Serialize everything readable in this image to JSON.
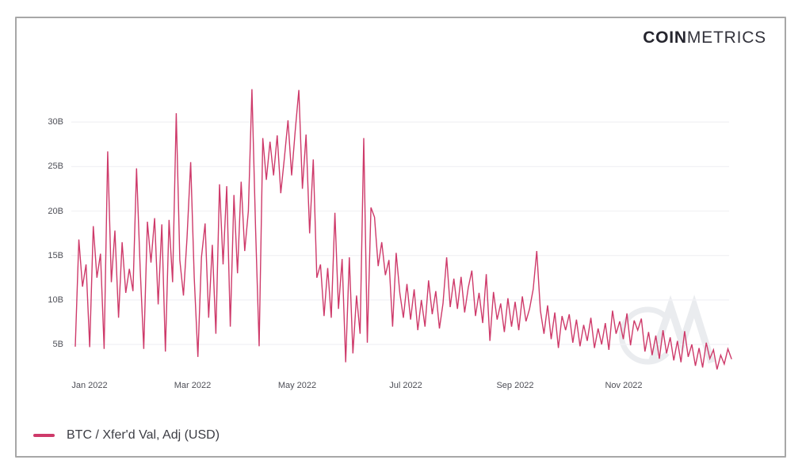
{
  "brand": {
    "logo_bold": "COIN",
    "logo_light": "METRICS"
  },
  "colors": {
    "accent": "#ce3a6a",
    "grid": "#f2f2f5",
    "axis_text": "#4e4f57",
    "frame_border": "#a7a7a7",
    "watermark": "#eaecef"
  },
  "legend": {
    "label": "BTC / Xfer'd Val, Adj (USD)"
  },
  "watermark_icon": "cm-monogram-icon",
  "chart_data": {
    "type": "line",
    "title": "",
    "xlabel": "",
    "ylabel": "",
    "unit": "USD (billions)",
    "legend_position": "bottom-left",
    "grid": "horizontal-only",
    "series_name": "BTC / Xfer'd Val, Adj (USD)",
    "x_tick_labels": [
      "Jan 2022",
      "Mar 2022",
      "May 2022",
      "Jul 2022",
      "Sep 2022",
      "Nov 2022"
    ],
    "y_tick_labels": [
      "30B",
      "25B",
      "20B",
      "15B",
      "10B",
      "5B"
    ],
    "y_tick_values": [
      30,
      25,
      20,
      15,
      10,
      5
    ],
    "ylim": [
      0,
      34
    ],
    "x_range_description": "Daily values, Jan 2022 through Dec 2022",
    "values_unit": "billions USD",
    "values": [
      4.8,
      16.8,
      11.5,
      14.0,
      4.7,
      18.3,
      12.5,
      15.2,
      4.5,
      26.7,
      12.0,
      17.8,
      8.0,
      16.5,
      10.8,
      13.5,
      11.0,
      24.8,
      13.5,
      4.5,
      18.8,
      14.2,
      19.2,
      9.5,
      18.5,
      4.2,
      19.0,
      12.0,
      31.0,
      14.5,
      10.5,
      17.0,
      25.5,
      12.5,
      3.6,
      14.8,
      18.6,
      8.0,
      16.2,
      6.2,
      23.0,
      14.0,
      22.8,
      7.0,
      21.8,
      13.0,
      23.3,
      15.5,
      20.0,
      33.7,
      18.0,
      4.8,
      28.2,
      23.5,
      27.8,
      24.0,
      28.5,
      22.0,
      26.0,
      30.2,
      24.0,
      29.0,
      33.6,
      22.5,
      28.6,
      17.5,
      25.8,
      12.5,
      14.0,
      8.2,
      13.6,
      8.0,
      19.8,
      9.0,
      14.6,
      3.0,
      14.8,
      4.0,
      10.5,
      6.2,
      28.2,
      5.2,
      20.4,
      19.3,
      13.8,
      16.5,
      12.8,
      14.5,
      7.0,
      15.3,
      10.8,
      8.0,
      11.8,
      7.8,
      11.2,
      6.6,
      10.0,
      7.0,
      12.2,
      8.4,
      11.0,
      6.8,
      9.6,
      14.8,
      9.2,
      12.4,
      9.0,
      12.6,
      8.6,
      11.4,
      13.3,
      8.2,
      10.8,
      7.4,
      12.9,
      5.4,
      10.9,
      7.8,
      9.6,
      6.4,
      10.2,
      7.0,
      9.8,
      6.6,
      10.4,
      7.6,
      9.0,
      11.2,
      15.5,
      8.8,
      6.2,
      9.4,
      5.6,
      8.6,
      4.6,
      8.2,
      6.6,
      8.4,
      5.2,
      7.8,
      4.8,
      7.2,
      5.4,
      8.0,
      4.6,
      6.8,
      5.0,
      7.4,
      4.4,
      8.8,
      6.2,
      7.6,
      5.6,
      8.5,
      4.9,
      7.7,
      6.6,
      7.9,
      4.2,
      6.4,
      3.8,
      6.0,
      3.4,
      6.6,
      4.0,
      5.8,
      3.2,
      5.4,
      3.0,
      6.5,
      3.6,
      5.0,
      2.6,
      4.6,
      2.4,
      5.2,
      3.4,
      4.4,
      2.2,
      3.8,
      2.8,
      4.5,
      3.4
    ]
  }
}
